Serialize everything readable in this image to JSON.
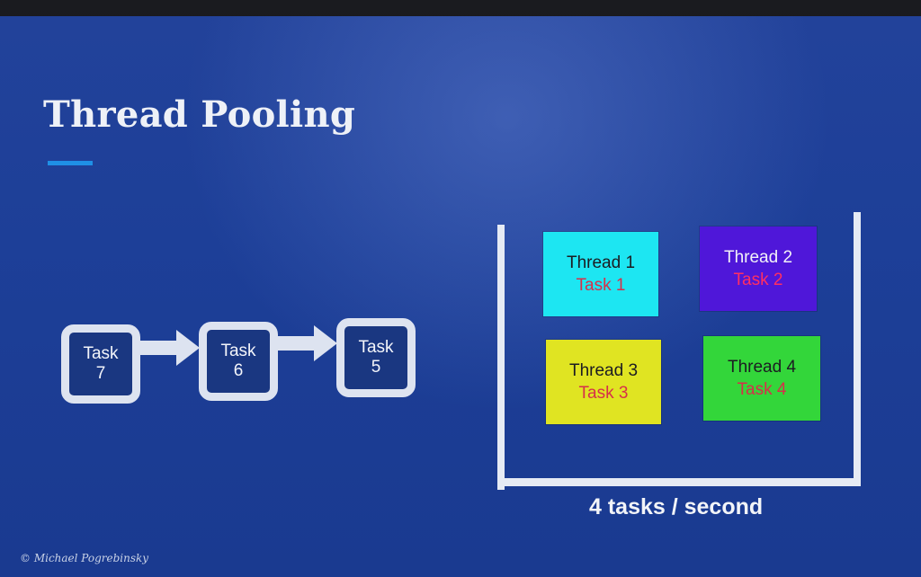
{
  "slide": {
    "title": "Thread Pooling",
    "accent_color": "#1f90e6",
    "background_color": "#1d3f98"
  },
  "queue": {
    "tasks": [
      {
        "line1": "Task",
        "line2": "7"
      },
      {
        "line1": "Task",
        "line2": "6"
      },
      {
        "line1": "Task",
        "line2": "5"
      }
    ]
  },
  "pool": {
    "threads": [
      {
        "name": "Thread 1",
        "task": "Task 1",
        "color": "#1de6f2"
      },
      {
        "name": "Thread 2",
        "task": "Task 2",
        "color": "#4f17d9"
      },
      {
        "name": "Thread 3",
        "task": "Task 3",
        "color": "#e0e422"
      },
      {
        "name": "Thread 4",
        "task": "Task 4",
        "color": "#33d63a"
      }
    ],
    "rate_label": "4 tasks / second"
  },
  "footer": {
    "copyright": "© Michael Pogrebinsky"
  }
}
